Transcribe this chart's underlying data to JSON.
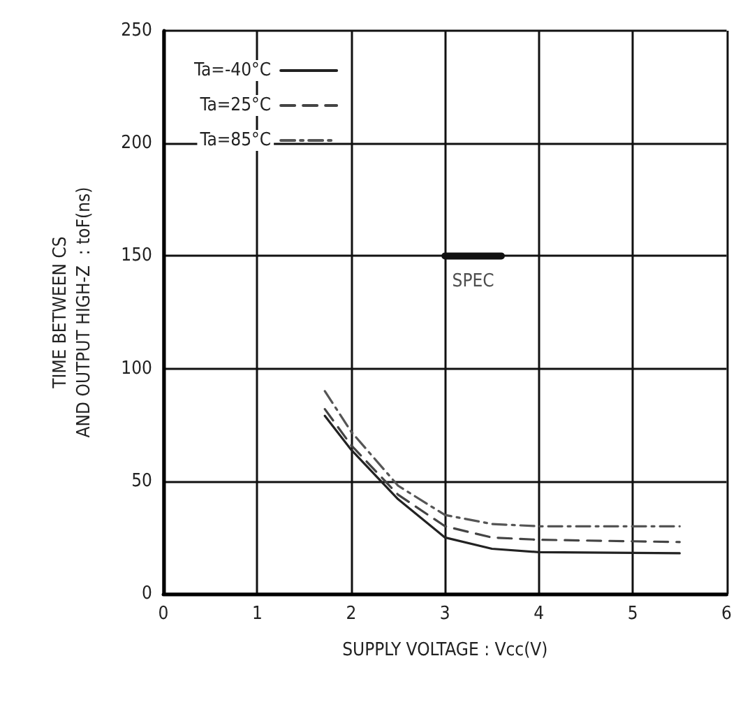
{
  "chart_data": {
    "type": "line",
    "xlabel": "SUPPLY VOLTAGE : Vcc(V)",
    "ylabel": "TIME BETWEEN CS\nAND OUTPUT HIGH-Z  : toF(ns)",
    "xlim": [
      0,
      6
    ],
    "xticks": [
      0,
      1,
      2,
      3,
      4,
      5,
      6
    ],
    "ylim": [
      0,
      250
    ],
    "yticks": [
      0,
      50,
      100,
      150,
      200,
      250
    ],
    "grid": true,
    "legend": "top left",
    "marker": "none",
    "series": [
      {
        "name": "Ta=-40°C",
        "color": "#222222",
        "line_style": "solid",
        "x": [
          1.72,
          2,
          2.5,
          3,
          3.5,
          4,
          5.5
        ],
        "values": [
          79,
          64,
          42,
          25,
          20,
          18.5,
          18
        ]
      },
      {
        "name": "Ta=25°C",
        "color": "#444444",
        "line_style": "dashed",
        "x": [
          1.72,
          2,
          2.5,
          3,
          3.5,
          4,
          5.5
        ],
        "values": [
          82,
          66,
          44,
          30,
          25,
          24,
          23
        ]
      },
      {
        "name": "Ta=85°C",
        "color": "#555555",
        "line_style": "dashdot",
        "x": [
          1.72,
          2,
          2.5,
          3,
          3.5,
          4,
          5.5
        ],
        "values": [
          90,
          72,
          48,
          35,
          31,
          30,
          30
        ]
      },
      {
        "color": "#111111",
        "line_style": "solid",
        "x": [
          3,
          3.6
        ],
        "values": [
          150,
          150
        ]
      }
    ],
    "annotations": [
      {
        "text": "SPEC",
        "x": 3.3,
        "y": 150
      }
    ]
  }
}
